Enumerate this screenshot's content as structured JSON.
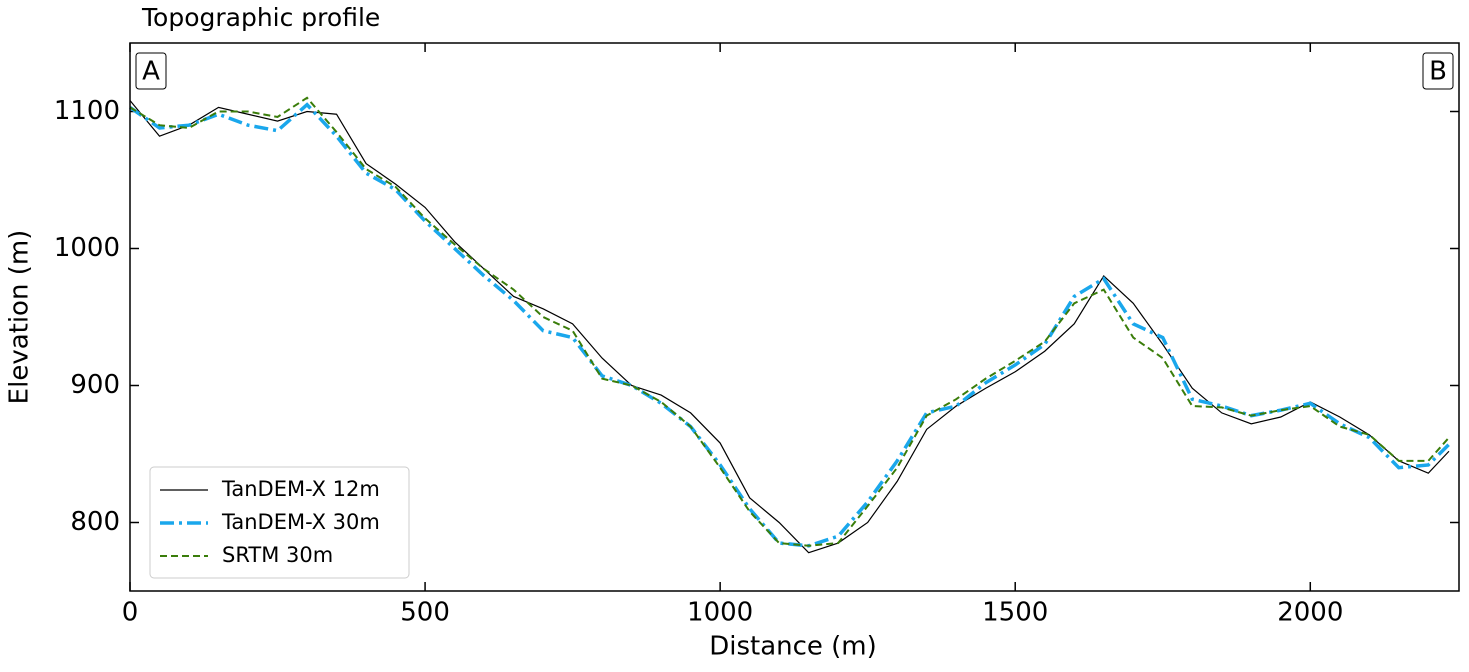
{
  "chart_data": {
    "type": "line",
    "title": "Topographic profile",
    "x_label": "Distance (m)",
    "y_label": "Elevation (m)",
    "annotations": [
      "A",
      "B"
    ],
    "x": [
      0,
      50,
      100,
      150,
      200,
      250,
      300,
      350,
      400,
      450,
      500,
      550,
      600,
      650,
      700,
      750,
      800,
      850,
      900,
      950,
      1000,
      1050,
      1100,
      1150,
      1200,
      1250,
      1300,
      1350,
      1400,
      1450,
      1500,
      1550,
      1600,
      1650,
      1700,
      1750,
      1800,
      1850,
      1900,
      1950,
      2000,
      2050,
      2100,
      2150,
      2200,
      2235
    ],
    "series": [
      {
        "name": "TanDEM-X 12m",
        "color": "#000000",
        "values": [
          1108,
          1082,
          1090,
          1103,
          1098,
          1093,
          1100,
          1098,
          1062,
          1047,
          1030,
          1005,
          985,
          965,
          956,
          945,
          920,
          900,
          893,
          880,
          858,
          818,
          800,
          778,
          785,
          800,
          830,
          868,
          885,
          898,
          910,
          925,
          945,
          980,
          960,
          930,
          898,
          880,
          872,
          877,
          888,
          877,
          864,
          845,
          836,
          852
        ]
      },
      {
        "name": "TanDEM-X 30m",
        "color": "#1aa7ec",
        "values": [
          1103,
          1088,
          1090,
          1098,
          1090,
          1086,
          1105,
          1082,
          1055,
          1043,
          1020,
          1000,
          980,
          962,
          940,
          935,
          907,
          900,
          887,
          870,
          842,
          810,
          785,
          783,
          790,
          815,
          845,
          880,
          885,
          902,
          915,
          930,
          965,
          978,
          945,
          935,
          890,
          885,
          878,
          882,
          887,
          872,
          862,
          840,
          842,
          857
        ]
      },
      {
        "name": "SRTM 30m",
        "color": "#3a7d0a",
        "values": [
          1103,
          1090,
          1088,
          1100,
          1100,
          1096,
          1110,
          1085,
          1058,
          1045,
          1022,
          1003,
          985,
          970,
          950,
          940,
          905,
          900,
          888,
          870,
          840,
          808,
          785,
          783,
          785,
          812,
          840,
          878,
          890,
          905,
          918,
          932,
          960,
          970,
          935,
          920,
          885,
          884,
          878,
          882,
          885,
          870,
          864,
          845,
          845,
          862
        ]
      }
    ],
    "xlim": [
      0,
      2252
    ],
    "xticks": [
      0,
      500,
      1000,
      1500,
      2000
    ],
    "ylim": [
      750,
      1150
    ],
    "yticks": [
      800,
      900,
      1000,
      1100
    ],
    "legend": "lower left"
  }
}
